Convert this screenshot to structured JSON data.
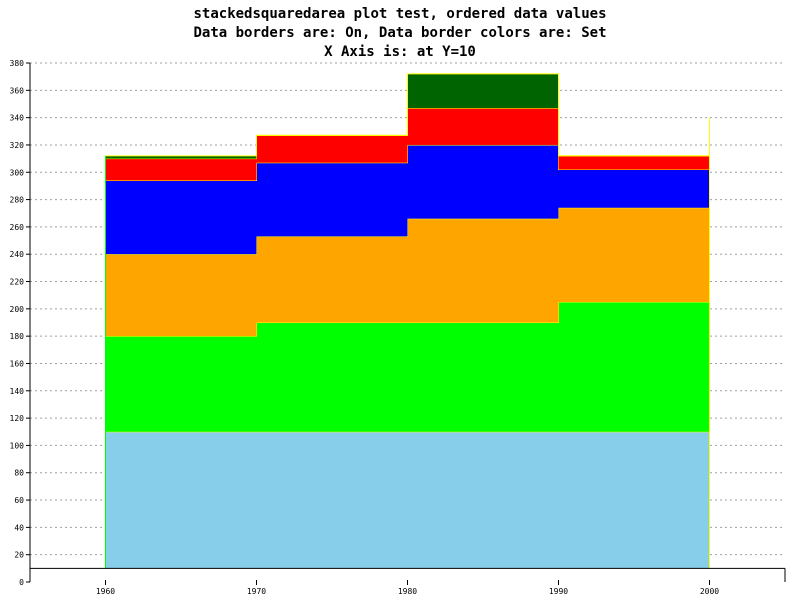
{
  "chart_data": {
    "type": "area",
    "title_lines": [
      "stackedsquaredarea plot test, ordered data values",
      "Data borders are: On, Data border colors are: Set",
      "X Axis is: at Y=10"
    ],
    "x": [
      1960,
      1970,
      1980,
      1990,
      2000
    ],
    "x_tick_labels": [
      "1960",
      "1970",
      "1980",
      "1990",
      "2000"
    ],
    "ylim": [
      0,
      380
    ],
    "y_ticks": [
      0,
      20,
      40,
      60,
      80,
      100,
      120,
      140,
      160,
      180,
      200,
      220,
      240,
      260,
      280,
      300,
      320,
      340,
      360,
      380
    ],
    "x_axis_at_y": 10,
    "step": "post",
    "grid": {
      "horizontal": true,
      "style": "dashed"
    },
    "series": [
      {
        "color": "#87ceeb",
        "values": [
          100,
          100,
          100,
          100,
          100
        ]
      },
      {
        "color": "#00ff00",
        "values": [
          70,
          80,
          80,
          95,
          0
        ]
      },
      {
        "color": "#ffa500",
        "values": [
          60,
          63,
          76,
          69,
          0
        ]
      },
      {
        "color": "#0000ff",
        "values": [
          54,
          54,
          54,
          28,
          0
        ]
      },
      {
        "color": "#ff0000",
        "values": [
          16,
          20,
          27,
          10,
          0
        ]
      },
      {
        "color": "#006400",
        "values": [
          2,
          0,
          25,
          0,
          0
        ]
      }
    ]
  }
}
